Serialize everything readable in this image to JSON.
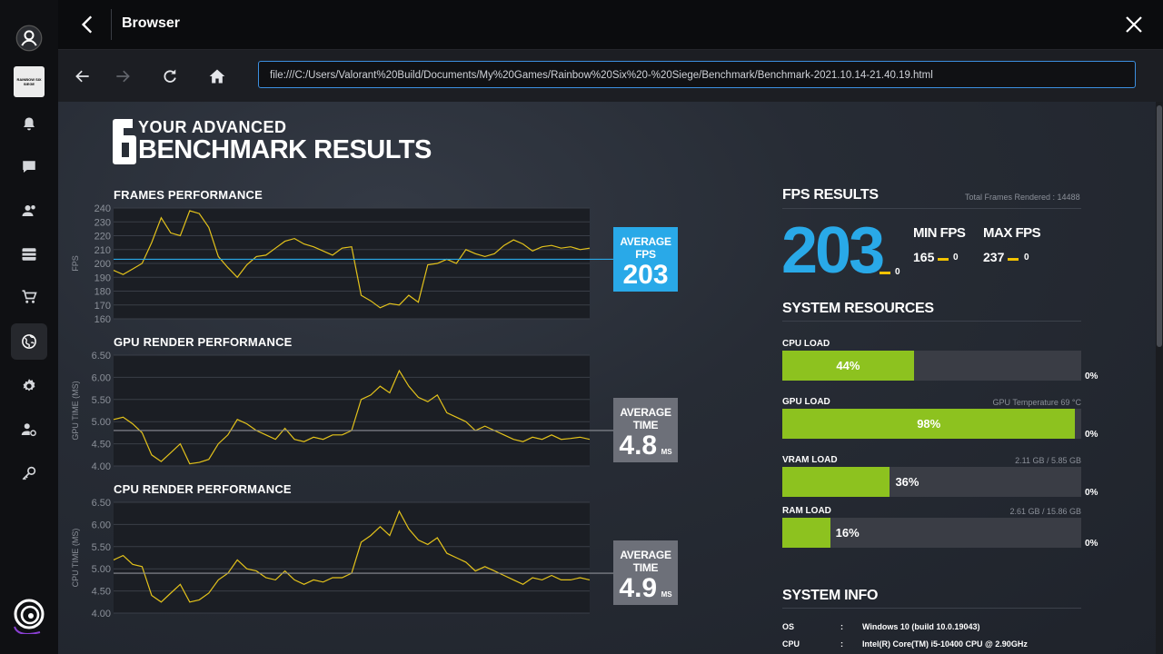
{
  "window": {
    "title": "Browser"
  },
  "browser": {
    "url": "file:///C:/Users/Valorant%20Build/Documents/My%20Games/Rainbow%20Six%20-%20Siege/Benchmark/Benchmark-2021.10.14-21.40.19.html"
  },
  "sidebar": {
    "game_tile": "RAINBOW SIX SIEGE"
  },
  "page": {
    "heading_small": "YOUR ADVANCED",
    "heading_big": "BENCHMARK RESULTS",
    "logo_digit": "6"
  },
  "charts": {
    "frames": {
      "title": "FRAMES PERFORMANCE",
      "ylabel": "FPS",
      "avg_label": "AVERAGE FPS",
      "avg_value": "203"
    },
    "gpu": {
      "title": "GPU RENDER PERFORMANCE",
      "ylabel": "GPU TIME (MS)",
      "avg_label": "AVERAGE TIME",
      "avg_value": "4.8",
      "avg_unit": "MS"
    },
    "cpu": {
      "title": "CPU RENDER PERFORMANCE",
      "ylabel": "CPU TIME (MS)",
      "avg_label": "AVERAGE TIME",
      "avg_value": "4.9",
      "avg_unit": "MS"
    }
  },
  "fps_results": {
    "title": "FPS RESULTS",
    "total_frames": "Total Frames Rendered : 14488",
    "average": "203",
    "average_delta": "0",
    "min_label": "MIN FPS",
    "min_value": "165",
    "min_delta": "0",
    "max_label": "MAX FPS",
    "max_value": "237",
    "max_delta": "0"
  },
  "system_resources": {
    "title": "SYSTEM RESOURCES",
    "items": [
      {
        "label": "CPU LOAD",
        "detail": "",
        "value": "44%",
        "fraction": 0.44,
        "delta": "0%"
      },
      {
        "label": "GPU LOAD",
        "detail": "GPU Temperature 69 °C",
        "value": "98%",
        "fraction": 0.98,
        "delta": "0%"
      },
      {
        "label": "VRAM LOAD",
        "detail": "2.11 GB / 5.85 GB",
        "value": "36%",
        "fraction": 0.36,
        "delta": "0%"
      },
      {
        "label": "RAM LOAD",
        "detail": "2.61 GB / 15.86 GB",
        "value": "16%",
        "fraction": 0.16,
        "delta": "0%"
      }
    ]
  },
  "system_info": {
    "title": "SYSTEM INFO",
    "rows": [
      {
        "key": "OS",
        "sep": ":",
        "value": "Windows 10 (build 10.0.19043)"
      },
      {
        "key": "CPU",
        "sep": ":",
        "value": "Intel(R) Core(TM) i5-10400 CPU @ 2.90GHz"
      }
    ]
  },
  "colors": {
    "accent": "#29a9e8",
    "bar": "#8dc21f",
    "line": "#e3c21b",
    "delta": "#f2c200"
  },
  "chart_data": [
    {
      "type": "line",
      "ylabel": "FPS",
      "yticks": [
        160,
        170,
        180,
        190,
        200,
        210,
        220,
        230,
        240
      ],
      "ylim": [
        160,
        240
      ],
      "average": 203,
      "x": [
        0,
        2,
        4,
        6,
        8,
        10,
        12,
        14,
        16,
        18,
        20,
        22,
        24,
        26,
        28,
        30,
        32,
        34,
        36,
        38,
        40,
        42,
        44,
        46,
        48,
        50,
        52,
        54,
        56,
        58,
        60,
        62,
        64,
        66,
        68,
        70,
        72,
        74,
        76,
        78,
        80,
        82,
        84,
        86,
        88,
        90,
        92,
        94,
        96,
        98,
        100
      ],
      "values": [
        195,
        192,
        196,
        200,
        215,
        233,
        222,
        220,
        238,
        236,
        226,
        205,
        197,
        190,
        199,
        205,
        206,
        211,
        216,
        218,
        214,
        212,
        209,
        206,
        211,
        212,
        177,
        173,
        168,
        171,
        170,
        177,
        172,
        199,
        200,
        203,
        200,
        210,
        207,
        205,
        207,
        213,
        217,
        214,
        209,
        212,
        213,
        211,
        212,
        210,
        211
      ]
    },
    {
      "type": "line",
      "ylabel": "GPU TIME (MS)",
      "yticks": [
        4.0,
        4.5,
        5.0,
        5.5,
        6.0,
        6.5
      ],
      "ylim": [
        4.0,
        6.5
      ],
      "average": 4.8,
      "x": [
        0,
        2,
        4,
        6,
        8,
        10,
        12,
        14,
        16,
        18,
        20,
        22,
        24,
        26,
        28,
        30,
        32,
        34,
        36,
        38,
        40,
        42,
        44,
        46,
        48,
        50,
        52,
        54,
        56,
        58,
        60,
        62,
        64,
        66,
        68,
        70,
        72,
        74,
        76,
        78,
        80,
        82,
        84,
        86,
        88,
        90,
        92,
        94,
        96,
        98,
        100
      ],
      "values": [
        5.05,
        5.1,
        4.95,
        4.75,
        4.25,
        4.1,
        4.3,
        4.5,
        4.05,
        4.08,
        4.15,
        4.5,
        4.7,
        5.05,
        4.95,
        4.8,
        4.7,
        4.6,
        4.85,
        4.6,
        4.55,
        4.65,
        4.6,
        4.7,
        4.7,
        4.8,
        5.5,
        5.6,
        5.8,
        5.65,
        6.15,
        5.8,
        5.55,
        5.45,
        5.6,
        5.2,
        5.1,
        5.0,
        4.8,
        4.9,
        4.8,
        4.7,
        4.6,
        4.55,
        4.65,
        4.6,
        4.7,
        4.6,
        4.62,
        4.65,
        4.6
      ]
    },
    {
      "type": "line",
      "ylabel": "CPU TIME (MS)",
      "yticks": [
        4.0,
        4.5,
        5.0,
        5.5,
        6.0,
        6.5
      ],
      "ylim": [
        4.0,
        6.5
      ],
      "average": 4.9,
      "x": [
        0,
        2,
        4,
        6,
        8,
        10,
        12,
        14,
        16,
        18,
        20,
        22,
        24,
        26,
        28,
        30,
        32,
        34,
        36,
        38,
        40,
        42,
        44,
        46,
        48,
        50,
        52,
        54,
        56,
        58,
        60,
        62,
        64,
        66,
        68,
        70,
        72,
        74,
        76,
        78,
        80,
        82,
        84,
        86,
        88,
        90,
        92,
        94,
        96,
        98,
        100
      ],
      "values": [
        5.2,
        5.3,
        5.1,
        5.05,
        4.4,
        4.25,
        4.45,
        4.65,
        4.25,
        4.3,
        4.45,
        4.75,
        4.9,
        5.2,
        5.0,
        4.95,
        4.8,
        4.75,
        4.95,
        4.75,
        4.65,
        4.75,
        4.7,
        4.8,
        4.8,
        4.9,
        5.6,
        5.75,
        5.95,
        5.75,
        6.3,
        5.9,
        5.65,
        5.55,
        5.7,
        5.35,
        5.25,
        5.15,
        4.95,
        5.05,
        4.95,
        4.85,
        4.75,
        4.65,
        4.8,
        4.75,
        4.85,
        4.75,
        4.75,
        4.8,
        4.75
      ]
    }
  ]
}
